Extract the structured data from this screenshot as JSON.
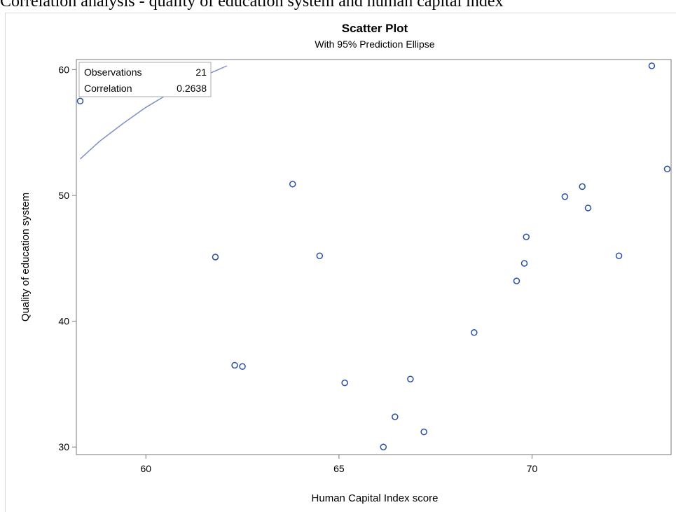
{
  "page_caption": "Correlation analysis - quality of education system and human capital index",
  "chart_data": {
    "type": "scatter",
    "title": "Scatter Plot",
    "subtitle": "With 95% Prediction Ellipse",
    "xlabel": "Human Capital Index score",
    "ylabel": "Quality of education system",
    "xlim": [
      58.2,
      73.6
    ],
    "ylim": [
      29.4,
      60.8
    ],
    "xticks": [
      60,
      65,
      70
    ],
    "yticks": [
      30,
      40,
      50,
      60
    ],
    "grid": false,
    "inset": {
      "rows": [
        {
          "label": "Observations",
          "value": "21"
        },
        {
          "label": "Correlation",
          "value": "0.2638"
        }
      ],
      "placement": "top-left"
    },
    "series": [
      {
        "points": [
          {
            "x": 58.3,
            "y": 57.5
          },
          {
            "x": 61.8,
            "y": 45.1
          },
          {
            "x": 62.3,
            "y": 36.5
          },
          {
            "x": 62.5,
            "y": 36.4
          },
          {
            "x": 63.8,
            "y": 50.9
          },
          {
            "x": 64.5,
            "y": 45.2
          },
          {
            "x": 65.15,
            "y": 35.1
          },
          {
            "x": 66.15,
            "y": 30.0
          },
          {
            "x": 66.45,
            "y": 32.4
          },
          {
            "x": 66.85,
            "y": 35.4
          },
          {
            "x": 67.2,
            "y": 31.2
          },
          {
            "x": 68.5,
            "y": 39.1
          },
          {
            "x": 69.6,
            "y": 43.2
          },
          {
            "x": 69.8,
            "y": 44.6
          },
          {
            "x": 69.85,
            "y": 46.7
          },
          {
            "x": 70.85,
            "y": 49.9
          },
          {
            "x": 71.3,
            "y": 50.7
          },
          {
            "x": 71.45,
            "y": 49.0
          },
          {
            "x": 72.25,
            "y": 45.2
          },
          {
            "x": 73.1,
            "y": 60.3
          },
          {
            "x": 73.5,
            "y": 52.1
          }
        ]
      }
    ],
    "ellipse_visible_arc": [
      {
        "x": 58.3,
        "y": 52.9
      },
      {
        "x": 58.8,
        "y": 54.3
      },
      {
        "x": 59.4,
        "y": 55.7
      },
      {
        "x": 60.0,
        "y": 57.0
      },
      {
        "x": 60.6,
        "y": 58.1
      },
      {
        "x": 61.2,
        "y": 59.1
      },
      {
        "x": 61.8,
        "y": 59.9
      },
      {
        "x": 62.1,
        "y": 60.3
      }
    ],
    "colors": {
      "marker": "#2a4fa8",
      "ellipse": "#7f8fc6",
      "axis": "#777777"
    }
  }
}
